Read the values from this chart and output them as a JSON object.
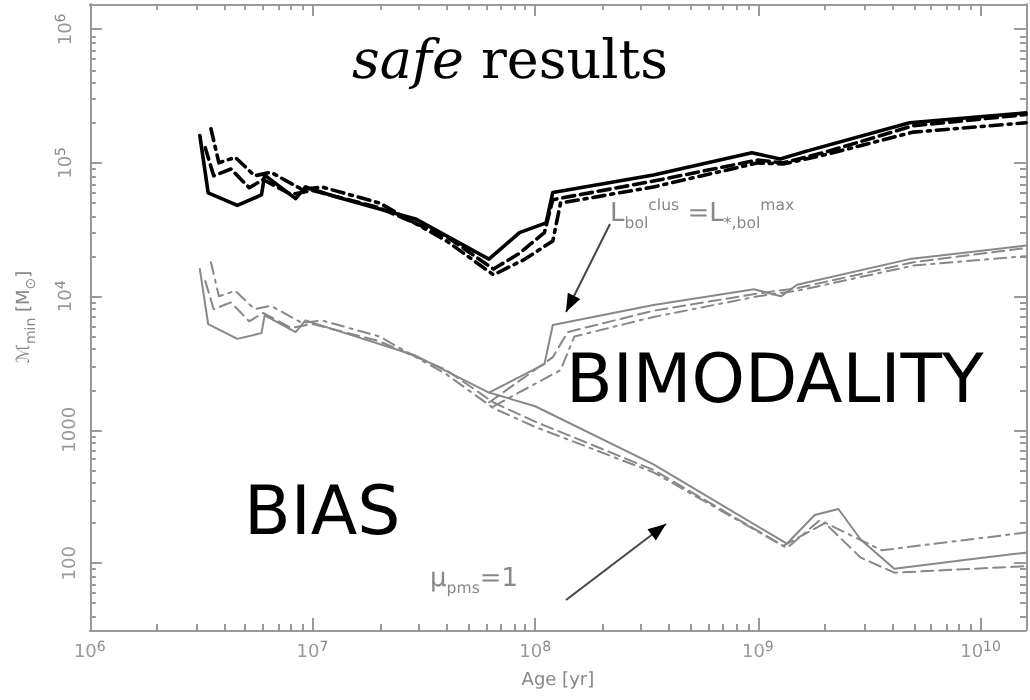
{
  "chart_data": {
    "type": "line",
    "title": "safe results",
    "xlabel": "Age [yr]",
    "ylabel": "ℳ$_{min}$ [M$_{⊙}$]",
    "annotations": [
      "L$_{bol}$$^{clus}$ =L$_{*,bol}$$^{max}$",
      "BIMODALITY",
      "BIAS",
      "μ$_{pms}$=1"
    ],
    "log": "xy",
    "grid": false,
    "marker": "none",
    "xlim": [
      1000000,
      16000000000
    ],
    "ylim": [
      31.6,
      1550000
    ],
    "xticks": [
      {
        "value": 1000000,
        "label": "10$^{6}$"
      },
      {
        "value": 10000000,
        "label": "10$^{7}$"
      },
      {
        "value": 100000000,
        "label": "10$^{8}$"
      },
      {
        "value": 1000000000,
        "label": "10$^{9}$"
      },
      {
        "value": 10000000000,
        "label": "10$^{10}$"
      }
    ],
    "yticks": [
      100,
      1000,
      {
        "value": 10000,
        "label": "10$^{4}$"
      },
      {
        "value": 100000,
        "label": "10$^{5}$"
      },
      {
        "value": 1000000,
        "label": "10$^{6}$"
      }
    ],
    "series": [
      {
        "color": "#000000",
        "line_style": "solid",
        "x": [
          3120000,
          3400000,
          4600000,
          5900000,
          6100000,
          8400000,
          9300000,
          12600000,
          29000000,
          62000000,
          85000000,
          112000000,
          120000000,
          340000000,
          940000000,
          1260000000,
          1670000000,
          4800000000,
          16000000000
        ],
        "values": [
          160000,
          59600,
          48000,
          57500,
          81000,
          54000,
          66000,
          56000,
          38000,
          19000,
          30000,
          35500,
          60000,
          81000,
          119000,
          107000,
          123000,
          200000,
          237000
        ]
      },
      {
        "color": "#000000",
        "line_style": "dashed",
        "x": [
          3300000,
          3600000,
          4300000,
          5200000,
          6000000,
          8000000,
          10000000,
          20000000,
          40000000,
          65000000,
          85000000,
          110000000,
          120000000,
          340000000,
          1000000000,
          1300000000,
          2000000000,
          5000000000,
          16000000000
        ],
        "values": [
          130000,
          80000,
          90000,
          65000,
          75000,
          58000,
          62000,
          46000,
          28000,
          16000,
          21000,
          30000,
          53000,
          73000,
          105000,
          100000,
          120000,
          190000,
          230000
        ]
      },
      {
        "color": "#000000",
        "line_style": "dashdot",
        "x": [
          3500000,
          3800000,
          4500000,
          5500000,
          6500000,
          9000000,
          11000000,
          20000000,
          40000000,
          65000000,
          90000000,
          120000000,
          130000000,
          340000000,
          1000000000,
          1300000000,
          2000000000,
          5000000000,
          16000000000
        ],
        "values": [
          180000,
          100000,
          110000,
          80000,
          85000,
          63000,
          66000,
          50000,
          26000,
          14500,
          19000,
          26000,
          50000,
          66000,
          100000,
          98000,
          115000,
          170000,
          200000
        ]
      },
      {
        "color": "#888888",
        "line_style": "solid",
        "x": [
          3120000,
          3400000,
          4600000,
          5900000,
          6100000,
          8400000,
          9300000,
          12600000,
          29000000,
          62000000,
          100000000,
          340000000,
          1350000000,
          1800000000,
          2300000000,
          2900000000,
          4100000000,
          9400000000,
          16000000000
        ],
        "values": [
          16000,
          6200,
          4800,
          5300,
          7200,
          5400,
          6600,
          5600,
          3600,
          1900,
          1500,
          550,
          140,
          230,
          255,
          150,
          91,
          108,
          120
        ]
      },
      {
        "color": "#888888",
        "line_style": "dashed",
        "x": [
          3300000,
          3600000,
          4300000,
          5200000,
          6000000,
          8000000,
          10000000,
          20000000,
          40000000,
          65000000,
          100000000,
          340000000,
          1300000000,
          2000000000,
          2900000000,
          4100000000,
          16000000000
        ],
        "values": [
          13000,
          8000,
          9000,
          6500,
          7500,
          5800,
          6200,
          4600,
          2800,
          1600,
          1150,
          500,
          135,
          200,
          110,
          85,
          95
        ]
      },
      {
        "color": "#888888",
        "line_style": "dashdot",
        "x": [
          3500000,
          3800000,
          4500000,
          5500000,
          6500000,
          9000000,
          11000000,
          20000000,
          40000000,
          65000000,
          100000000,
          340000000,
          1350000000,
          1900000000,
          3600000000,
          16000000000
        ],
        "values": [
          18000,
          10000,
          11000,
          8000,
          8500,
          6300,
          6600,
          5000,
          2600,
          1450,
          1050,
          480,
          130,
          210,
          125,
          170
        ]
      },
      {
        "color": "#888888",
        "line_style": "solid",
        "x": [
          62000000,
          110000000,
          120000000,
          340000000,
          960000000,
          1270000000,
          1500000000,
          4800000000,
          16000000000
        ],
        "values": [
          1900,
          3100,
          6100,
          8600,
          11300,
          10000,
          12200,
          19000,
          24000
        ]
      },
      {
        "color": "#888888",
        "line_style": "dashed",
        "x": [
          62000000,
          120000000,
          140000000,
          340000000,
          1000000000,
          1500000000,
          5000000000,
          16000000000
        ],
        "values": [
          1600,
          3500,
          5400,
          7800,
          10500,
          11500,
          18000,
          23000
        ]
      },
      {
        "color": "#888888",
        "line_style": "dashdot",
        "x": [
          65000000,
          130000000,
          150000000,
          340000000,
          1000000000,
          1500000000,
          5000000000,
          16000000000
        ],
        "values": [
          1500,
          2800,
          5000,
          7000,
          10000,
          11000,
          17000,
          20000
        ]
      }
    ]
  }
}
